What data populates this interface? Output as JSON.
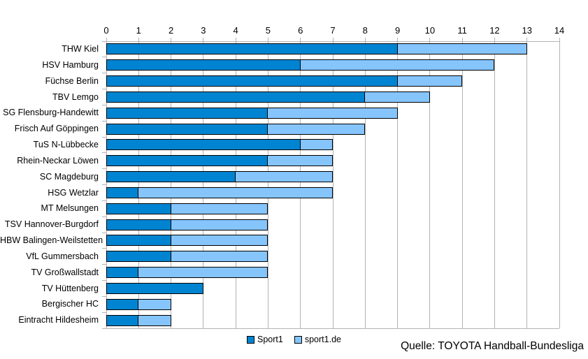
{
  "chart_data": {
    "type": "bar",
    "orientation": "horizontal",
    "stacked": true,
    "title": "",
    "xlabel": "",
    "ylabel": "",
    "xlim": [
      0,
      14
    ],
    "x_ticks": [
      0,
      1,
      2,
      3,
      4,
      5,
      6,
      7,
      8,
      9,
      10,
      11,
      12,
      13,
      14
    ],
    "grid": true,
    "legend_position": "bottom",
    "categories": [
      "THW Kiel",
      "HSV Hamburg",
      "Füchse Berlin",
      "TBV Lemgo",
      "SG Flensburg-Handewitt",
      "Frisch Auf Göppingen",
      "TuS N-Lübbecke",
      "Rhein-Neckar Löwen",
      "SC Magdeburg",
      "HSG Wetzlar",
      "MT Melsungen",
      "TSV Hannover-Burgdorf",
      "HBW Balingen-Weilstetten",
      "VfL Gummersbach",
      "TV Großwallstadt",
      "TV Hüttenberg",
      "Bergischer HC",
      "Eintracht Hildesheim"
    ],
    "series": [
      {
        "name": "Sport1",
        "color": "#0084d1",
        "values": [
          9,
          6,
          9,
          8,
          5,
          5,
          6,
          5,
          4,
          1,
          2,
          2,
          2,
          2,
          1,
          3,
          1,
          1
        ]
      },
      {
        "name": "sport1.de",
        "color": "#86c4fc",
        "values": [
          4,
          6,
          2,
          2,
          4,
          3,
          1,
          2,
          3,
          6,
          3,
          3,
          3,
          3,
          4,
          0,
          1,
          1
        ]
      }
    ],
    "totals": [
      13,
      12,
      11,
      10,
      9,
      8,
      7,
      7,
      7,
      7,
      5,
      5,
      5,
      5,
      5,
      3,
      2,
      2
    ]
  },
  "colors": {
    "grid": "#b3b3b3",
    "bar_border": "#000000",
    "background": "#ffffff",
    "text": "#000000"
  },
  "legend": {
    "items": [
      "Sport1",
      "sport1.de"
    ]
  },
  "source_note": "Quelle: TOYOTA Handball-Bundesliga"
}
